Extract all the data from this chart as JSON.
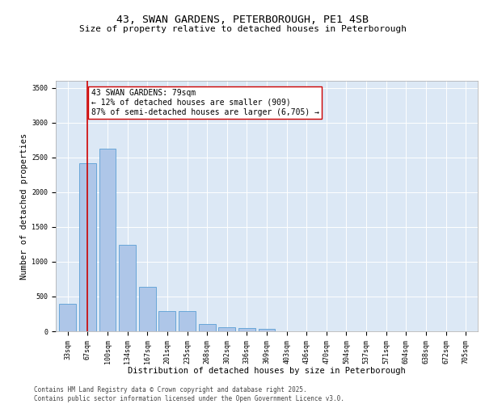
{
  "title": "43, SWAN GARDENS, PETERBOROUGH, PE1 4SB",
  "subtitle": "Size of property relative to detached houses in Peterborough",
  "xlabel": "Distribution of detached houses by size in Peterborough",
  "ylabel": "Number of detached properties",
  "bar_labels": [
    "33sqm",
    "67sqm",
    "100sqm",
    "134sqm",
    "167sqm",
    "201sqm",
    "235sqm",
    "268sqm",
    "302sqm",
    "336sqm",
    "369sqm",
    "403sqm",
    "436sqm",
    "470sqm",
    "504sqm",
    "537sqm",
    "571sqm",
    "604sqm",
    "638sqm",
    "672sqm",
    "705sqm"
  ],
  "bar_values": [
    400,
    2420,
    2620,
    1240,
    640,
    290,
    285,
    105,
    55,
    50,
    30,
    5,
    0,
    0,
    0,
    0,
    0,
    0,
    0,
    0,
    0
  ],
  "bar_color": "#aec6e8",
  "bar_edge_color": "#5a9fd4",
  "vline_x_idx": 1,
  "vline_color": "#cc0000",
  "annotation_text": "43 SWAN GARDENS: 79sqm\n← 12% of detached houses are smaller (909)\n87% of semi-detached houses are larger (6,705) →",
  "annotation_box_color": "#ffffff",
  "annotation_box_edge": "#cc0000",
  "ylim": [
    0,
    3600
  ],
  "yticks": [
    0,
    500,
    1000,
    1500,
    2000,
    2500,
    3000,
    3500
  ],
  "bg_color": "#dce8f5",
  "footer_line1": "Contains HM Land Registry data © Crown copyright and database right 2025.",
  "footer_line2": "Contains public sector information licensed under the Open Government Licence v3.0.",
  "title_fontsize": 9.5,
  "subtitle_fontsize": 8,
  "axis_label_fontsize": 7.5,
  "tick_fontsize": 6,
  "annotation_fontsize": 7,
  "footer_fontsize": 5.5
}
